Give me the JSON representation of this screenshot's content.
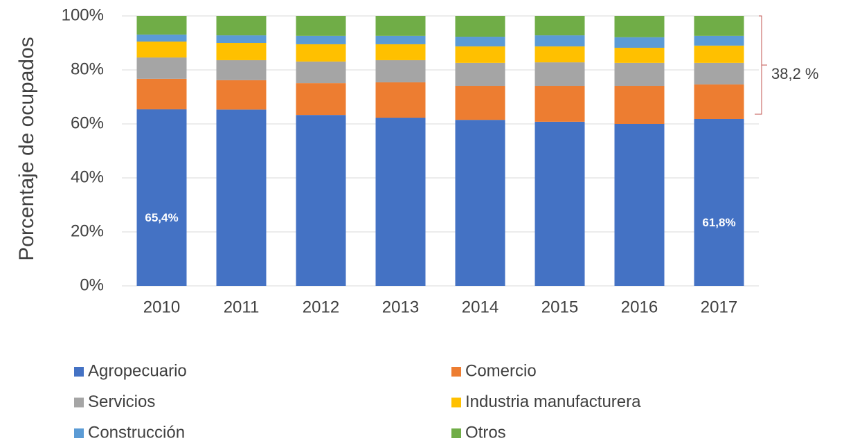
{
  "chart_data": {
    "type": "stacked_bar",
    "y_label": "Porcentaje de ocupados",
    "categories": [
      "2010",
      "2011",
      "2012",
      "2013",
      "2014",
      "2015",
      "2016",
      "2017"
    ],
    "series": [
      {
        "name": "Agropecuario",
        "color": "#4472c4",
        "values": [
          65.4,
          65.3,
          63.3,
          62.3,
          61.5,
          60.8,
          60.0,
          61.8
        ],
        "value_labels": [
          "65,4%",
          null,
          null,
          null,
          null,
          null,
          null,
          "61,8%"
        ]
      },
      {
        "name": "Comercio",
        "color": "#ed7d31",
        "values": [
          11.3,
          10.9,
          11.8,
          13.1,
          12.6,
          13.3,
          14.1,
          12.8
        ]
      },
      {
        "name": "Servicios",
        "color": "#a5a5a5",
        "values": [
          7.9,
          7.4,
          8.0,
          8.2,
          8.5,
          8.7,
          8.5,
          8.0
        ]
      },
      {
        "name": "Industria manufacturera",
        "color": "#ffc000",
        "values": [
          5.9,
          6.4,
          6.4,
          5.9,
          6.1,
          5.9,
          5.6,
          6.4
        ]
      },
      {
        "name": "Construcción",
        "color": "#5b9bd5",
        "values": [
          2.6,
          2.8,
          3.1,
          3.1,
          3.6,
          4.1,
          3.9,
          3.6
        ]
      },
      {
        "name": "Otros",
        "color": "#70ad47",
        "values": [
          6.9,
          7.2,
          7.4,
          7.4,
          7.7,
          7.2,
          7.9,
          7.4
        ]
      }
    ],
    "ylim": [
      0,
      100
    ],
    "yticks": [
      {
        "value": 0,
        "label": "0%"
      },
      {
        "value": 20,
        "label": "20%"
      },
      {
        "value": 40,
        "label": "40%"
      },
      {
        "value": 60,
        "label": "60%"
      },
      {
        "value": 80,
        "label": "80%"
      },
      {
        "value": 100,
        "label": "100%"
      }
    ],
    "grid": true,
    "annotation": "38,2 %"
  }
}
